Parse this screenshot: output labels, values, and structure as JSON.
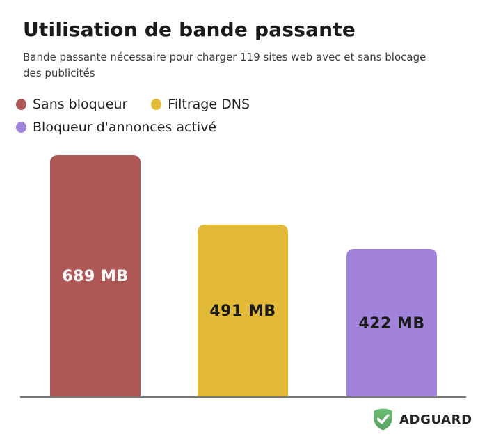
{
  "header": {
    "title": "Utilisation de bande passante",
    "subtitle": "Bande passante nécessaire pour charger 119 sites web avec et sans blocage des publicités"
  },
  "legend": {
    "items": [
      {
        "label": "Sans bloqueur",
        "color": "#ae5757"
      },
      {
        "label": "Filtrage DNS",
        "color": "#e2ba38"
      },
      {
        "label": "Bloqueur d'annonces activé",
        "color": "#a283dc"
      }
    ]
  },
  "chart_data": {
    "type": "bar",
    "title": "Utilisation de bande passante",
    "subtitle": "Bande passante nécessaire pour charger 119 sites web avec et sans blocage des publicités",
    "categories": [
      "Sans bloqueur",
      "Filtrage DNS",
      "Bloqueur d'annonces activé"
    ],
    "values": [
      689,
      491,
      422
    ],
    "unit": "MB",
    "data_labels": [
      "689 MB",
      "491 MB",
      "422 MB"
    ],
    "bar_colors": [
      "#ae5757",
      "#e2ba38",
      "#a283dc"
    ],
    "data_label_colors": [
      "#ffffff",
      "#1b1b1b",
      "#1b1b1b"
    ],
    "ylim": [
      0,
      689
    ],
    "grid": false,
    "legend_position": "top",
    "baseline_color": "#77787a"
  },
  "footer": {
    "brand": "ADGUARD",
    "logo_colors": {
      "shield_top": "#68bd71",
      "shield_bottom": "#5aa263",
      "check": "#ffffff"
    }
  }
}
